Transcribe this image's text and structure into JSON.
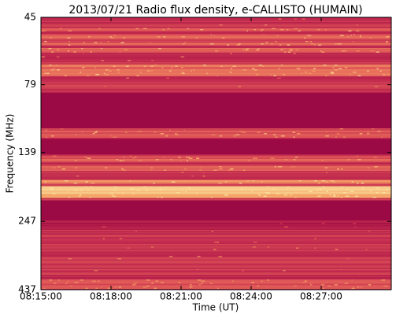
{
  "chart_data": {
    "type": "spectrogram",
    "title": "2013/07/21  Radio flux density, e-CALLISTO (HUMAIN)",
    "x_label": "Time (UT)",
    "y_label": "Frequency (MHz)",
    "xlim": [
      "08:15:00",
      "08:30:00"
    ],
    "xticks": [
      "08:15:00",
      "08:18:00",
      "08:21:00",
      "08:24:00",
      "08:27:00"
    ],
    "ylim": [
      45,
      437
    ],
    "yticks": [
      45,
      79,
      139,
      247,
      437
    ],
    "yscale": "log",
    "y_inverted": true
  }
}
